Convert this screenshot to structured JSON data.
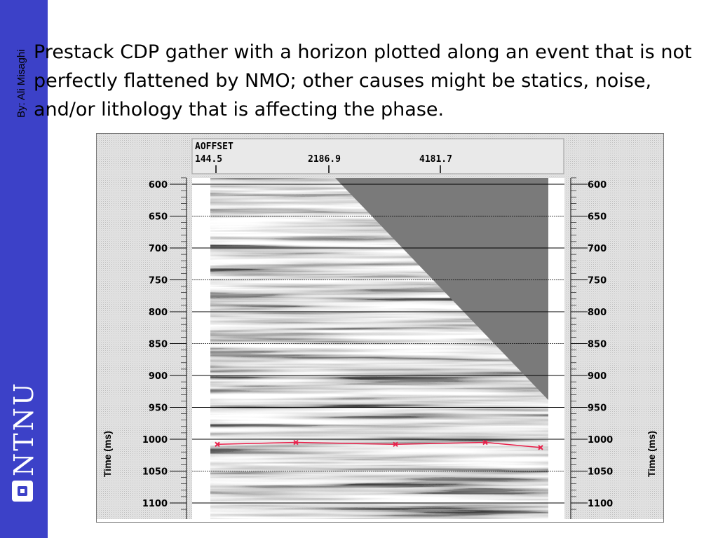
{
  "slide": {
    "author": "By: Ali Misaghi",
    "caption": "Prestack CDP gather with a horizon plotted along an event that is not perfectly flattened by NMO; other causes might be statics, noise, and/or lithology that is affecting the phase.",
    "logo_text": "NTNU",
    "sidebar_color": "#3c41c8"
  },
  "figure": {
    "header": {
      "label": "AOFFSET",
      "offsets": [
        "144.5",
        "2186.9",
        "4181.7"
      ]
    },
    "axis": {
      "title_left": "Time (ms)",
      "title_right": "Time (ms)",
      "ticks": [
        "600",
        "650",
        "700",
        "750",
        "800",
        "850",
        "900",
        "950",
        "1000",
        "1050",
        "1100"
      ]
    },
    "horizon": {
      "color": "#e8204a",
      "pick_times_ms": [
        1008,
        1005,
        1008,
        1005,
        1013
      ]
    }
  }
}
